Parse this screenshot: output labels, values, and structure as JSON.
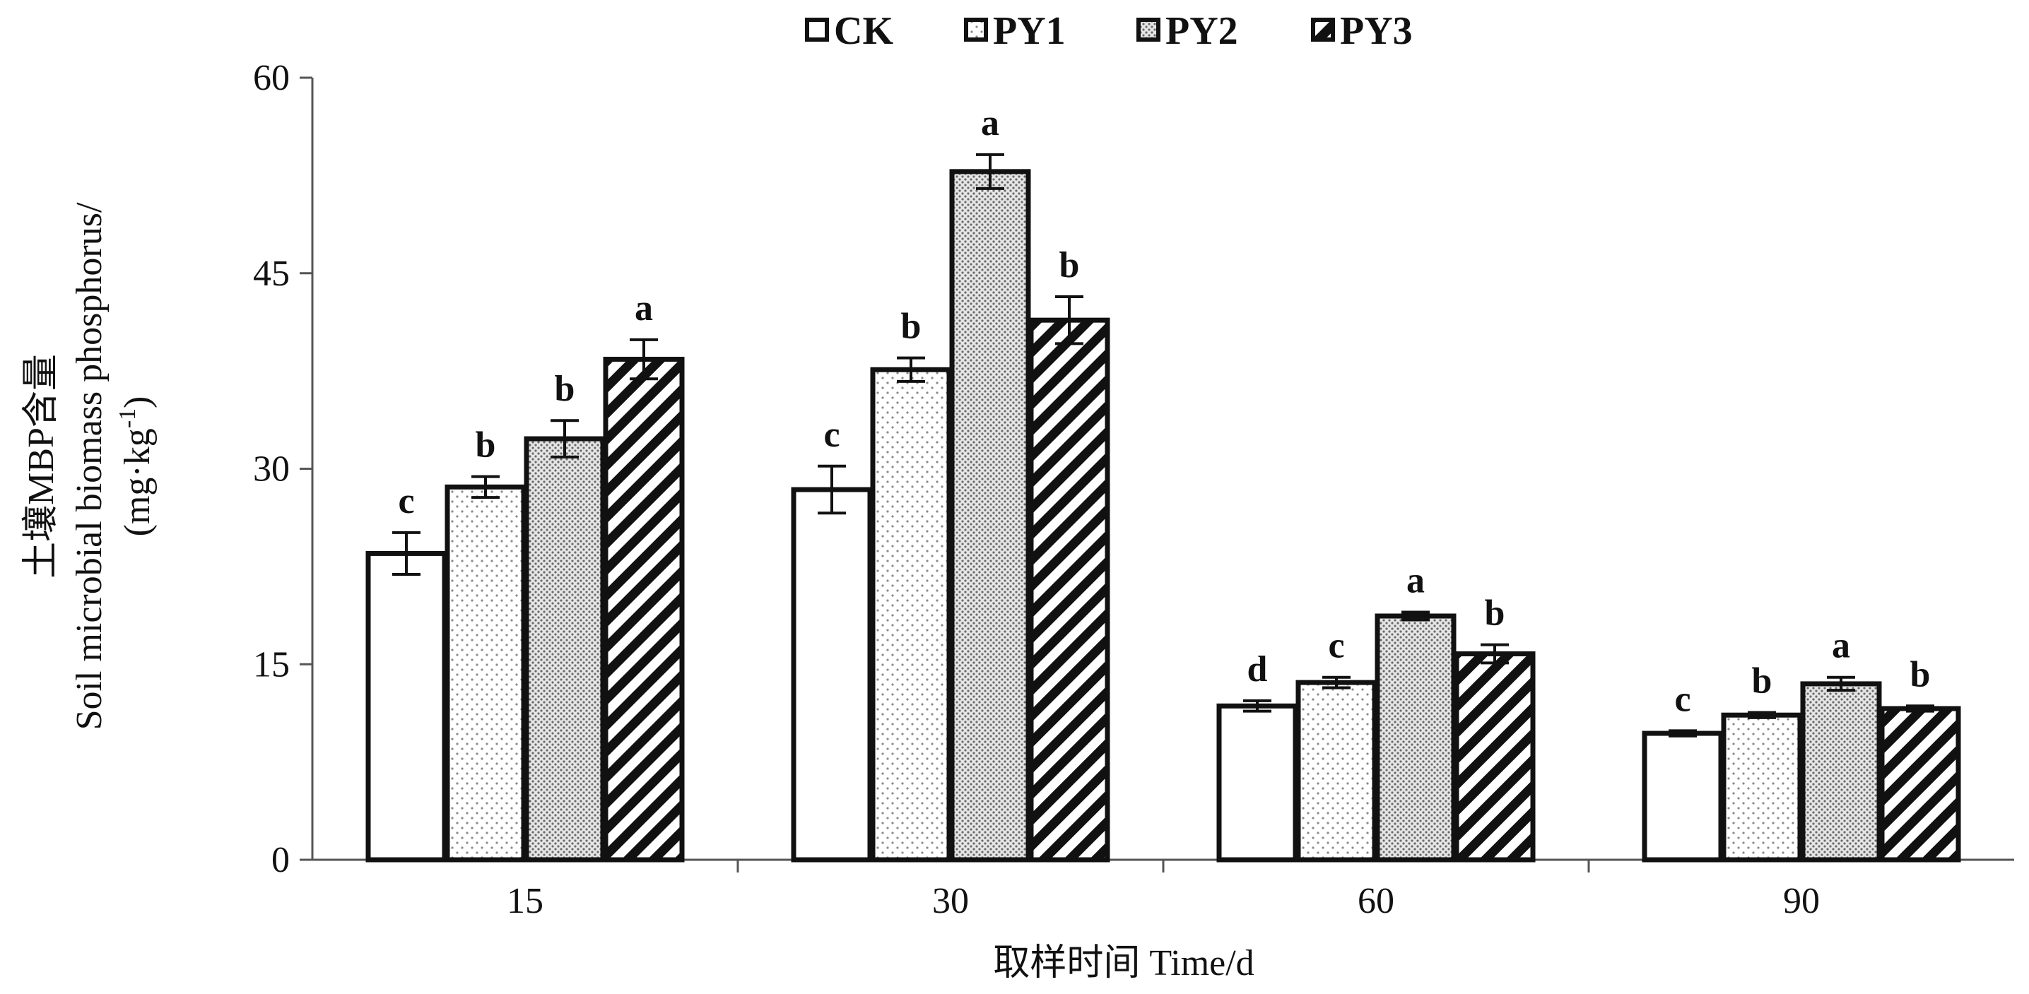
{
  "chart_data": {
    "type": "bar",
    "categories": [
      "15",
      "30",
      "60",
      "90"
    ],
    "series": [
      {
        "name": "CK",
        "pattern": "none",
        "values": [
          23.5,
          28.4,
          11.8,
          9.7
        ],
        "errors": [
          1.6,
          1.8,
          0.4,
          0.2
        ],
        "labels": [
          "c",
          "c",
          "d",
          "c"
        ]
      },
      {
        "name": "PY1",
        "pattern": "dots",
        "values": [
          28.6,
          37.6,
          13.6,
          11.1
        ],
        "errors": [
          0.8,
          0.9,
          0.4,
          0.2
        ],
        "labels": [
          "b",
          "b",
          "c",
          "b"
        ]
      },
      {
        "name": "PY2",
        "pattern": "dense",
        "values": [
          32.3,
          52.8,
          18.7,
          13.5
        ],
        "errors": [
          1.4,
          1.3,
          0.3,
          0.5
        ],
        "labels": [
          "b",
          "a",
          "a",
          "a"
        ]
      },
      {
        "name": "PY3",
        "pattern": "hatch",
        "values": [
          38.4,
          41.4,
          15.8,
          11.6
        ],
        "errors": [
          1.5,
          1.8,
          0.7,
          0.2
        ],
        "labels": [
          "a",
          "b",
          "b",
          "b"
        ]
      }
    ],
    "ylabel_lines": [
      "土壤MBP含量",
      "Soil microbial biomass phosphorus/",
      "(mg·kg",
      "-1",
      ")"
    ],
    "xlabel": "取样时间 Time/d",
    "ylim": [
      0,
      60
    ],
    "yticks": [
      "0",
      "15",
      "30",
      "45",
      "60"
    ],
    "legend_position": "top-center",
    "grid": false
  }
}
